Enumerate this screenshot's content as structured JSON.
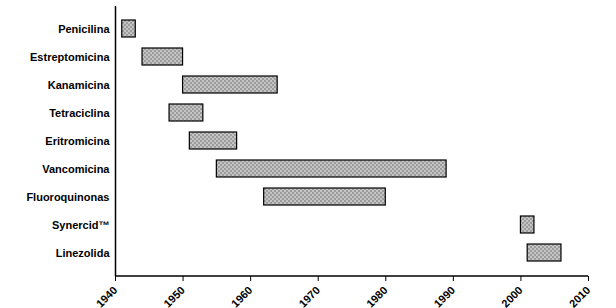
{
  "chart_data": {
    "type": "bar",
    "orientation": "horizontal",
    "categories": [
      "Penicilina",
      "Estreptomicina",
      "Kanamicina",
      "Tetraciclina",
      "Eritromicina",
      "Vancomicina",
      "Fluoroquinonas",
      "Synercid™",
      "Linezolida"
    ],
    "values": [
      [
        1941,
        1943
      ],
      [
        1944,
        1950
      ],
      [
        1950,
        1964
      ],
      [
        1948,
        1953
      ],
      [
        1951,
        1958
      ],
      [
        1955,
        1989
      ],
      [
        1962,
        1980
      ],
      [
        2000,
        2002
      ],
      [
        2001,
        2006
      ]
    ],
    "color": "#c4c4c4",
    "xlim": [
      1940,
      2010
    ],
    "xticks": [
      1940,
      1950,
      1960,
      1970,
      1980,
      1990,
      2000,
      2010
    ],
    "grid": false
  }
}
